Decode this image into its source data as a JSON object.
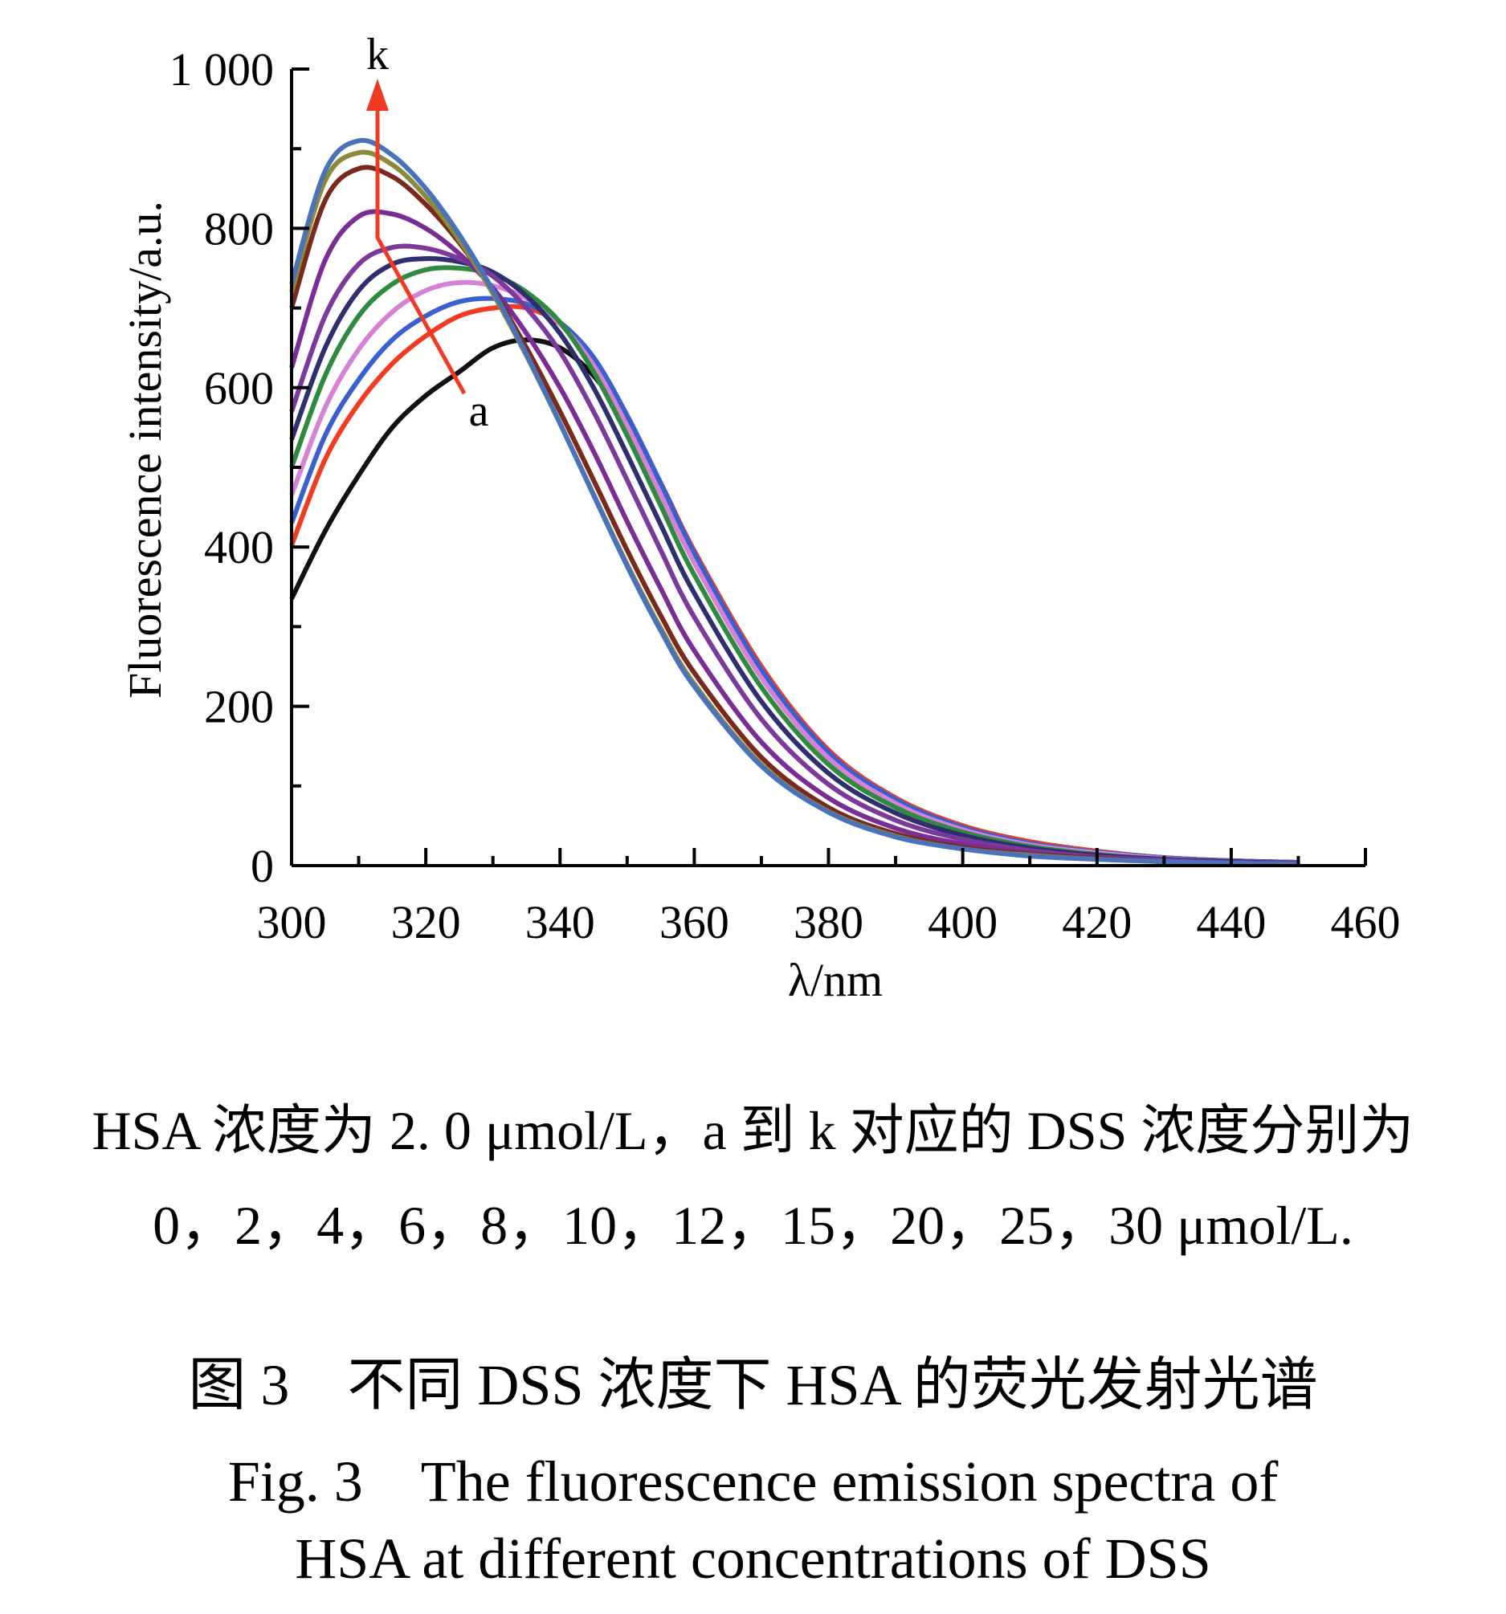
{
  "chart_data": {
    "type": "line",
    "title": "",
    "xlabel": "λ/nm",
    "ylabel": "Fluorescence intensity/a.u.",
    "xlim": [
      300,
      460
    ],
    "ylim": [
      0,
      1000
    ],
    "x_ticks": [
      300,
      320,
      340,
      360,
      380,
      400,
      420,
      440,
      460
    ],
    "x_tick_labels": [
      "300",
      "320",
      "340",
      "360",
      "380",
      "400",
      "420",
      "440",
      "460"
    ],
    "y_ticks": [
      0,
      200,
      400,
      600,
      800,
      1000
    ],
    "y_tick_labels": [
      "0",
      "200",
      "400",
      "600",
      "800",
      "1 000"
    ],
    "grid": false,
    "legend": "none",
    "annotation": {
      "start_label": "a",
      "end_label": "k",
      "arrow_color": "#f03a24"
    },
    "x": [
      300,
      305,
      310,
      315,
      320,
      325,
      330,
      335,
      340,
      345,
      350,
      355,
      360,
      370,
      380,
      390,
      400,
      410,
      420,
      430,
      440,
      450
    ],
    "series": [
      {
        "color": "#111111",
        "values": [
          335,
          420,
          490,
          550,
          590,
          620,
          650,
          660,
          650,
          615,
          555,
          480,
          395,
          250,
          145,
          85,
          50,
          30,
          18,
          10,
          6,
          4
        ]
      },
      {
        "color": "#f23b22",
        "values": [
          402,
          510,
          580,
          630,
          665,
          690,
          700,
          700,
          680,
          635,
          565,
          480,
          395,
          250,
          145,
          85,
          50,
          30,
          18,
          10,
          6,
          4
        ]
      },
      {
        "color": "#3a5fcf",
        "values": [
          430,
          540,
          610,
          660,
          690,
          708,
          712,
          705,
          682,
          638,
          565,
          480,
          392,
          246,
          142,
          83,
          48,
          28,
          17,
          10,
          6,
          4
        ]
      },
      {
        "color": "#d582d6",
        "values": [
          465,
          575,
          648,
          695,
          722,
          732,
          728,
          712,
          680,
          628,
          552,
          466,
          380,
          236,
          135,
          78,
          45,
          26,
          16,
          9,
          5,
          3
        ]
      },
      {
        "color": "#2f8a40",
        "values": [
          500,
          615,
          690,
          730,
          748,
          750,
          742,
          720,
          682,
          620,
          540,
          452,
          365,
          224,
          127,
          73,
          42,
          24,
          14,
          8,
          5,
          3
        ]
      },
      {
        "color": "#2f2f6f",
        "values": [
          535,
          650,
          722,
          755,
          762,
          758,
          745,
          715,
          668,
          600,
          516,
          428,
          342,
          206,
          116,
          66,
          38,
          22,
          13,
          8,
          5,
          3
        ]
      },
      {
        "color": "#7b3a9a",
        "values": [
          570,
          690,
          755,
          776,
          775,
          762,
          740,
          700,
          645,
          570,
          484,
          396,
          312,
          184,
          102,
          57,
          33,
          19,
          11,
          7,
          4,
          3
        ]
      },
      {
        "color": "#7a2e95",
        "values": [
          625,
          760,
          815,
          818,
          800,
          768,
          725,
          668,
          600,
          520,
          432,
          348,
          270,
          155,
          85,
          47,
          27,
          16,
          10,
          6,
          4,
          3
        ]
      },
      {
        "color": "#7a2a1c",
        "values": [
          700,
          835,
          875,
          865,
          830,
          782,
          722,
          650,
          570,
          484,
          396,
          314,
          242,
          136,
          73,
          40,
          23,
          14,
          9,
          5,
          3,
          2
        ]
      },
      {
        "color": "#8a8a3a",
        "values": [
          720,
          860,
          895,
          880,
          840,
          785,
          718,
          640,
          555,
          466,
          378,
          298,
          228,
          127,
          68,
          37,
          21,
          13,
          8,
          5,
          3,
          2
        ]
      },
      {
        "color": "#4a72b8",
        "values": [
          730,
          872,
          910,
          892,
          850,
          792,
          722,
          642,
          555,
          465,
          376,
          295,
          225,
          125,
          67,
          36,
          21,
          12,
          8,
          5,
          3,
          2
        ]
      }
    ]
  },
  "caption": {
    "note_line1": "HSA 浓度为 2. 0 μmol/L，a 到 k 对应的 DSS 浓度分别为",
    "note_line2": "0，2，4，6，8，10，12，15，20，25，30 μmol/L.",
    "zh": "图 3　不同 DSS 浓度下 HSA 的荧光发射光谱",
    "en_line1": "Fig. 3　The fluorescence emission spectra of",
    "en_line2": "HSA at different concentrations of DSS"
  }
}
